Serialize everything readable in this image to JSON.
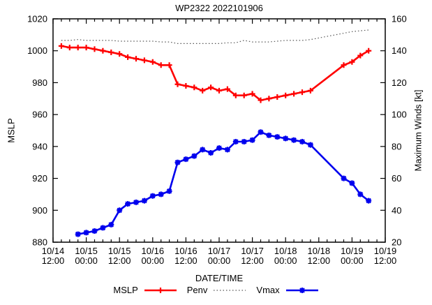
{
  "title": "WP2322 2022101906",
  "axes": {
    "x_label": "DATE/TIME",
    "y_left_label": "MSLP",
    "y_right_label": "Maximum Winds [kt]",
    "y_left": {
      "min": 880,
      "max": 1020,
      "step": 20
    },
    "y_right": {
      "min": 20,
      "max": 160,
      "step": 20
    },
    "y_left_ticks": [
      "880",
      "900",
      "920",
      "940",
      "960",
      "980",
      "1000",
      "1020"
    ],
    "y_right_ticks": [
      "20",
      "40",
      "60",
      "80",
      "100",
      "120",
      "140",
      "160"
    ],
    "x_hours_total": 120,
    "x_minor_step_h": 3,
    "x_major_step_h": 12,
    "x_tick_labels": [
      {
        "date": "10/14",
        "time": "12:00"
      },
      {
        "date": "10/15",
        "time": "00:00"
      },
      {
        "date": "10/15",
        "time": "12:00"
      },
      {
        "date": "10/16",
        "time": "00:00"
      },
      {
        "date": "10/16",
        "time": "12:00"
      },
      {
        "date": "10/17",
        "time": "00:00"
      },
      {
        "date": "10/17",
        "time": "12:00"
      },
      {
        "date": "10/18",
        "time": "00:00"
      },
      {
        "date": "10/18",
        "time": "12:00"
      },
      {
        "date": "10/19",
        "time": "00:00"
      },
      {
        "date": "10/19",
        "time": "12:00"
      }
    ]
  },
  "legend": [
    {
      "label": "MSLP",
      "color": "#ff0000",
      "line": "solid",
      "marker": "plus"
    },
    {
      "label": "Penv",
      "color": "#555555",
      "line": "dotted",
      "marker": "none"
    },
    {
      "label": "Vmax",
      "color": "#0000ee",
      "line": "solid",
      "marker": "star"
    }
  ],
  "chart_data": {
    "type": "line",
    "title": "WP2322 2022101906",
    "x_axis_unit": "hours since 10/14 12:00",
    "x_range_hours": [
      0,
      120
    ],
    "y_left_range": [
      880,
      1020
    ],
    "y_right_range": [
      20,
      160
    ],
    "grid": false,
    "legend_position": "bottom-center",
    "series": [
      {
        "name": "MSLP",
        "axis": "left",
        "color": "#ff0000",
        "style": "solid",
        "marker": "plus",
        "points": [
          [
            3,
            1003
          ],
          [
            6,
            1002
          ],
          [
            9,
            1002
          ],
          [
            12,
            1002
          ],
          [
            15,
            1001
          ],
          [
            18,
            1000
          ],
          [
            21,
            999
          ],
          [
            24,
            998
          ],
          [
            27,
            996
          ],
          [
            30,
            995
          ],
          [
            33,
            994
          ],
          [
            36,
            993
          ],
          [
            39,
            991
          ],
          [
            42,
            991
          ],
          [
            45,
            979
          ],
          [
            48,
            978
          ],
          [
            51,
            977
          ],
          [
            54,
            975
          ],
          [
            57,
            977
          ],
          [
            60,
            975
          ],
          [
            63,
            976
          ],
          [
            66,
            972
          ],
          [
            69,
            972
          ],
          [
            72,
            973
          ],
          [
            75,
            969
          ],
          [
            78,
            970
          ],
          [
            81,
            971
          ],
          [
            84,
            972
          ],
          [
            87,
            973
          ],
          [
            90,
            974
          ],
          [
            93,
            975
          ],
          [
            105,
            991
          ],
          [
            108,
            993
          ],
          [
            111,
            997
          ],
          [
            114,
            1000
          ]
        ]
      },
      {
        "name": "Penv",
        "axis": "left",
        "color": "#555555",
        "style": "dotted",
        "marker": "none",
        "points": [
          [
            3,
            1006.5
          ],
          [
            6,
            1006.5
          ],
          [
            9,
            1007
          ],
          [
            12,
            1006.5
          ],
          [
            15,
            1006.5
          ],
          [
            18,
            1006.5
          ],
          [
            21,
            1006.5
          ],
          [
            24,
            1006
          ],
          [
            27,
            1006
          ],
          [
            30,
            1006
          ],
          [
            33,
            1006
          ],
          [
            36,
            1006
          ],
          [
            39,
            1005.5
          ],
          [
            42,
            1005.5
          ],
          [
            45,
            1004.5
          ],
          [
            48,
            1004.5
          ],
          [
            51,
            1004.5
          ],
          [
            54,
            1004.5
          ],
          [
            57,
            1004.5
          ],
          [
            60,
            1004.5
          ],
          [
            63,
            1005
          ],
          [
            66,
            1005
          ],
          [
            69,
            1006.5
          ],
          [
            72,
            1005.5
          ],
          [
            75,
            1005.5
          ],
          [
            78,
            1005.5
          ],
          [
            81,
            1006
          ],
          [
            84,
            1006.5
          ],
          [
            87,
            1006.5
          ],
          [
            90,
            1006.5
          ],
          [
            93,
            1007
          ],
          [
            96,
            1008
          ],
          [
            99,
            1009
          ],
          [
            102,
            1010
          ],
          [
            105,
            1011
          ],
          [
            108,
            1012
          ],
          [
            111,
            1012.5
          ],
          [
            114,
            1013
          ]
        ]
      },
      {
        "name": "Vmax",
        "axis": "right",
        "color": "#0000ee",
        "style": "solid",
        "marker": "star",
        "points": [
          [
            9,
            25
          ],
          [
            12,
            26
          ],
          [
            15,
            27
          ],
          [
            18,
            29
          ],
          [
            21,
            31
          ],
          [
            24,
            40
          ],
          [
            27,
            44
          ],
          [
            30,
            45
          ],
          [
            33,
            46
          ],
          [
            36,
            49
          ],
          [
            39,
            50
          ],
          [
            42,
            52
          ],
          [
            45,
            70
          ],
          [
            48,
            72
          ],
          [
            51,
            74
          ],
          [
            54,
            78
          ],
          [
            57,
            76
          ],
          [
            60,
            79
          ],
          [
            63,
            78
          ],
          [
            66,
            83
          ],
          [
            69,
            83
          ],
          [
            72,
            84
          ],
          [
            75,
            89
          ],
          [
            78,
            87
          ],
          [
            81,
            86
          ],
          [
            84,
            85
          ],
          [
            87,
            84
          ],
          [
            90,
            83
          ],
          [
            93,
            81
          ],
          [
            105,
            60
          ],
          [
            108,
            57
          ],
          [
            111,
            50
          ],
          [
            114,
            46
          ]
        ]
      }
    ]
  }
}
